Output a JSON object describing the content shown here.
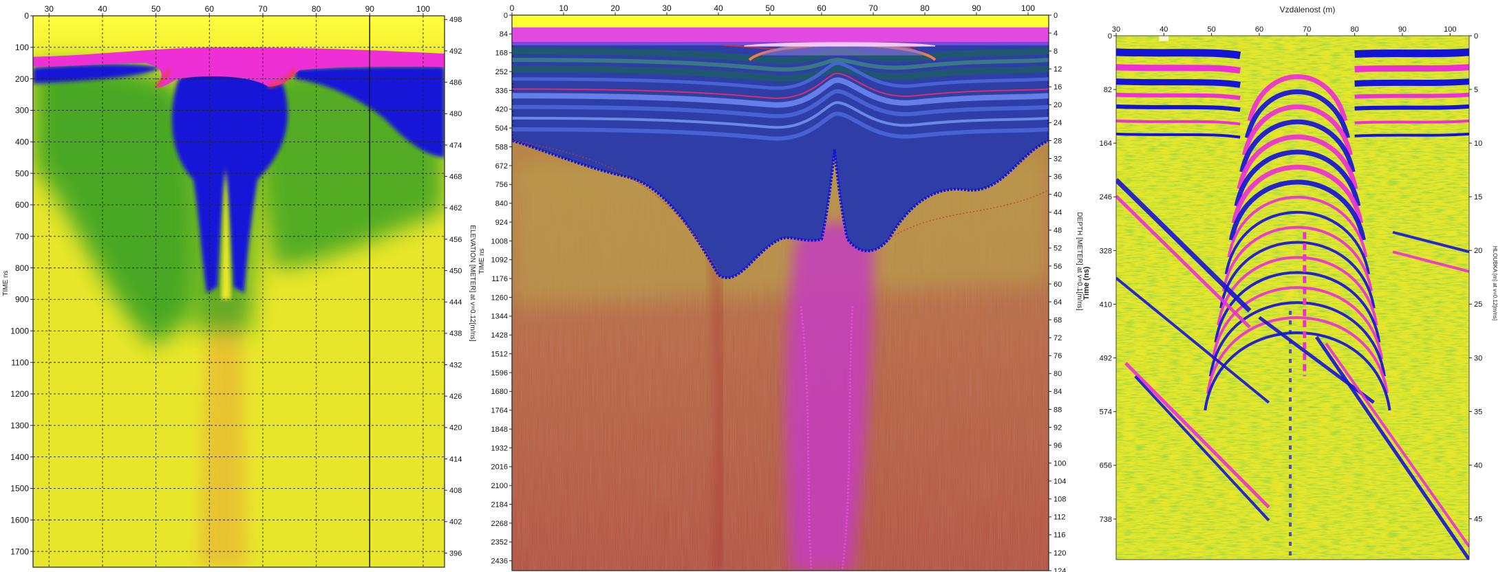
{
  "palette": {
    "yellow": "#e8e62a",
    "yellow_light": "#efe97a",
    "green": "#2f9e22",
    "blue": "#1414d8",
    "magenta": "#ee2fd6",
    "red_brown": "#b45545",
    "navy": "#2e3ea6",
    "teal": "#1f5a6a",
    "orange": "#e9a838"
  },
  "chart_data": [
    {
      "type": "heatmap",
      "title": "",
      "xlabel": "",
      "ylabel": "TIME ns",
      "y2label": "ELEVATION [METER] at v=0.12[m/ns]",
      "xlim": [
        27,
        104
      ],
      "ylim": [
        0,
        1750
      ],
      "y2lim": [
        498.7,
        393.3
      ],
      "xticks": [
        30,
        40,
        50,
        60,
        70,
        80,
        90,
        100
      ],
      "yticks": [
        0,
        100,
        200,
        300,
        400,
        500,
        600,
        700,
        800,
        900,
        1000,
        1100,
        1200,
        1300,
        1400,
        1500,
        1600,
        1700
      ],
      "y2ticks": [
        498,
        492,
        486,
        480,
        474,
        468,
        462,
        456,
        450,
        444,
        438,
        432,
        426,
        420,
        414,
        408,
        402,
        396
      ],
      "grid": true,
      "vline_x": 90,
      "colormap": [
        "magenta",
        "blue",
        "green",
        "yellow",
        "orange"
      ]
    },
    {
      "type": "heatmap",
      "title": "",
      "xlabel": "",
      "ylabel": "TIME ns",
      "y2label": "DEPTH [METER] at v=0.1[m/ns]",
      "xlim": [
        0,
        104
      ],
      "ylim": [
        0,
        2480
      ],
      "y2lim": [
        0,
        124
      ],
      "xticks": [
        0,
        10,
        20,
        30,
        40,
        50,
        60,
        70,
        80,
        90,
        100
      ],
      "yticks": [
        0,
        84,
        168,
        252,
        336,
        420,
        504,
        588,
        672,
        756,
        840,
        924,
        1008,
        1092,
        1176,
        1260,
        1344,
        1428,
        1512,
        1596,
        1680,
        1764,
        1848,
        1932,
        2016,
        2100,
        2184,
        2268,
        2352,
        2436
      ],
      "y2ticks": [
        0,
        4,
        8,
        12,
        16,
        20,
        24,
        28,
        32,
        36,
        40,
        44,
        48,
        52,
        56,
        60,
        64,
        68,
        72,
        76,
        80,
        84,
        88,
        92,
        96,
        100,
        104,
        108,
        112,
        116,
        120,
        124
      ],
      "grid": false,
      "colormap": [
        "yellow",
        "magenta",
        "navy",
        "teal",
        "blue",
        "red_brown"
      ]
    },
    {
      "type": "heatmap",
      "title": "Vzdálenost (m)",
      "xlabel": "",
      "ylabel": "Time (ns)",
      "y2label": "HLOUBKA [m] at v=0.12[m/ns]",
      "xlim": [
        30,
        104
      ],
      "ylim": [
        0,
        800
      ],
      "y2lim": [
        0,
        48.8
      ],
      "xticks": [
        30,
        40,
        50,
        60,
        70,
        80,
        90,
        100
      ],
      "yticks": [
        0,
        82,
        164,
        246,
        328,
        410,
        492,
        574,
        656,
        738
      ],
      "y2ticks": [
        0,
        5,
        10,
        15,
        20,
        25,
        30,
        35,
        40,
        45
      ],
      "grid": false,
      "colormap": [
        "magenta",
        "blue",
        "green",
        "yellow"
      ]
    }
  ]
}
